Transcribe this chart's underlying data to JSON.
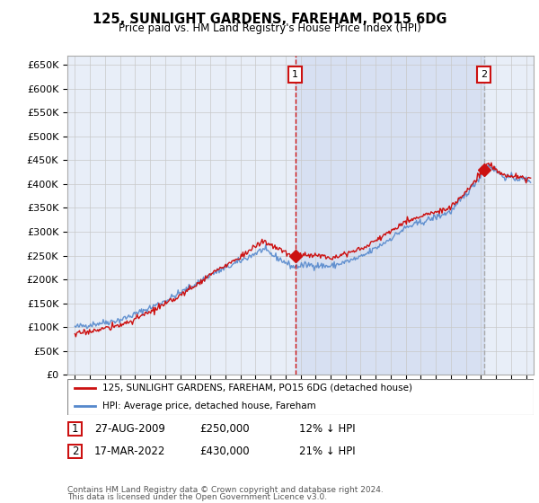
{
  "title": "125, SUNLIGHT GARDENS, FAREHAM, PO15 6DG",
  "subtitle": "Price paid vs. HM Land Registry's House Price Index (HPI)",
  "ylim": [
    0,
    670000
  ],
  "yticks": [
    0,
    50000,
    100000,
    150000,
    200000,
    250000,
    300000,
    350000,
    400000,
    450000,
    500000,
    550000,
    600000,
    650000
  ],
  "xlim_start": 1994.5,
  "xlim_end": 2025.5,
  "bg_color": "#e8eef8",
  "grid_color": "#c8c8c8",
  "hpi_color": "#5588cc",
  "price_color": "#cc1111",
  "transaction1_x": 2009.66,
  "transaction1_y": 250000,
  "transaction2_x": 2022.21,
  "transaction2_y": 430000,
  "vline1_color": "#cc1111",
  "vline2_color": "#aaaaaa",
  "shade_color": "#ccd8ee",
  "legend_label1": "125, SUNLIGHT GARDENS, FAREHAM, PO15 6DG (detached house)",
  "legend_label2": "HPI: Average price, detached house, Fareham",
  "footer1": "Contains HM Land Registry data © Crown copyright and database right 2024.",
  "footer2": "This data is licensed under the Open Government Licence v3.0.",
  "table_row1": [
    "1",
    "27-AUG-2009",
    "£250,000",
    "12% ↓ HPI"
  ],
  "table_row2": [
    "2",
    "17-MAR-2022",
    "£430,000",
    "21% ↓ HPI"
  ]
}
